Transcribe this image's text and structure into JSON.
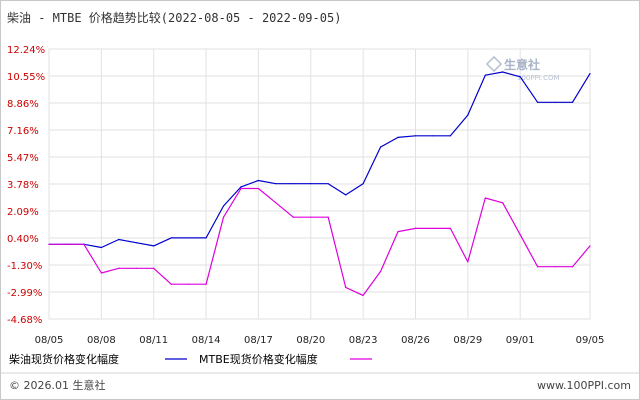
{
  "chart_data": {
    "type": "line",
    "title": "柴油 - MTBE 价格趋势比较(2022-08-05 - 2022-09-05)",
    "y_ticks": [
      "12.24%",
      "10.55%",
      "8.86%",
      "7.16%",
      "5.47%",
      "3.78%",
      "2.09%",
      "0.40%",
      "-1.30%",
      "-2.99%",
      "-4.68%"
    ],
    "ylim": [
      -4.68,
      12.24
    ],
    "x_ticks": [
      "08/05",
      "08/08",
      "08/11",
      "08/14",
      "08/17",
      "08/20",
      "08/23",
      "08/26",
      "08/29",
      "09/01",
      "09/05"
    ],
    "x": [
      "08/05",
      "08/06",
      "08/07",
      "08/08",
      "08/09",
      "08/10",
      "08/11",
      "08/12",
      "08/13",
      "08/14",
      "08/15",
      "08/16",
      "08/17",
      "08/18",
      "08/19",
      "08/20",
      "08/21",
      "08/22",
      "08/23",
      "08/24",
      "08/25",
      "08/26",
      "08/27",
      "08/28",
      "08/29",
      "08/30",
      "08/31",
      "09/01",
      "09/02",
      "09/03",
      "09/04",
      "09/05"
    ],
    "grid": true,
    "legend_position": "bottom-left",
    "series": [
      {
        "name": "柴油现货价格变化幅度",
        "color": "#0000cc",
        "values": [
          0.0,
          0.0,
          0.0,
          -0.2,
          0.3,
          0.1,
          -0.1,
          0.4,
          0.4,
          0.4,
          2.4,
          3.6,
          4.0,
          3.8,
          3.8,
          3.8,
          3.8,
          3.1,
          3.8,
          6.1,
          6.7,
          6.8,
          6.8,
          6.8,
          8.1,
          10.6,
          10.8,
          10.5,
          8.9,
          8.9,
          8.9,
          10.7
        ]
      },
      {
        "name": "MTBE现货价格变化幅度",
        "color": "#dd00dd",
        "values": [
          0.0,
          0.0,
          0.0,
          -1.8,
          -1.5,
          -1.5,
          -1.5,
          -2.5,
          -2.5,
          -2.5,
          1.7,
          3.5,
          3.5,
          2.6,
          1.7,
          1.7,
          1.7,
          -2.7,
          -3.2,
          -1.7,
          0.8,
          1.0,
          1.0,
          1.0,
          -1.1,
          2.9,
          2.6,
          0.6,
          -1.4,
          -1.4,
          -1.4,
          -0.1
        ]
      }
    ]
  },
  "footer": {
    "copyright": "© 2026.01 生意社",
    "url": "www.100PPI.com"
  },
  "watermark": {
    "name": "生意社",
    "url": "100PPI.COM"
  }
}
